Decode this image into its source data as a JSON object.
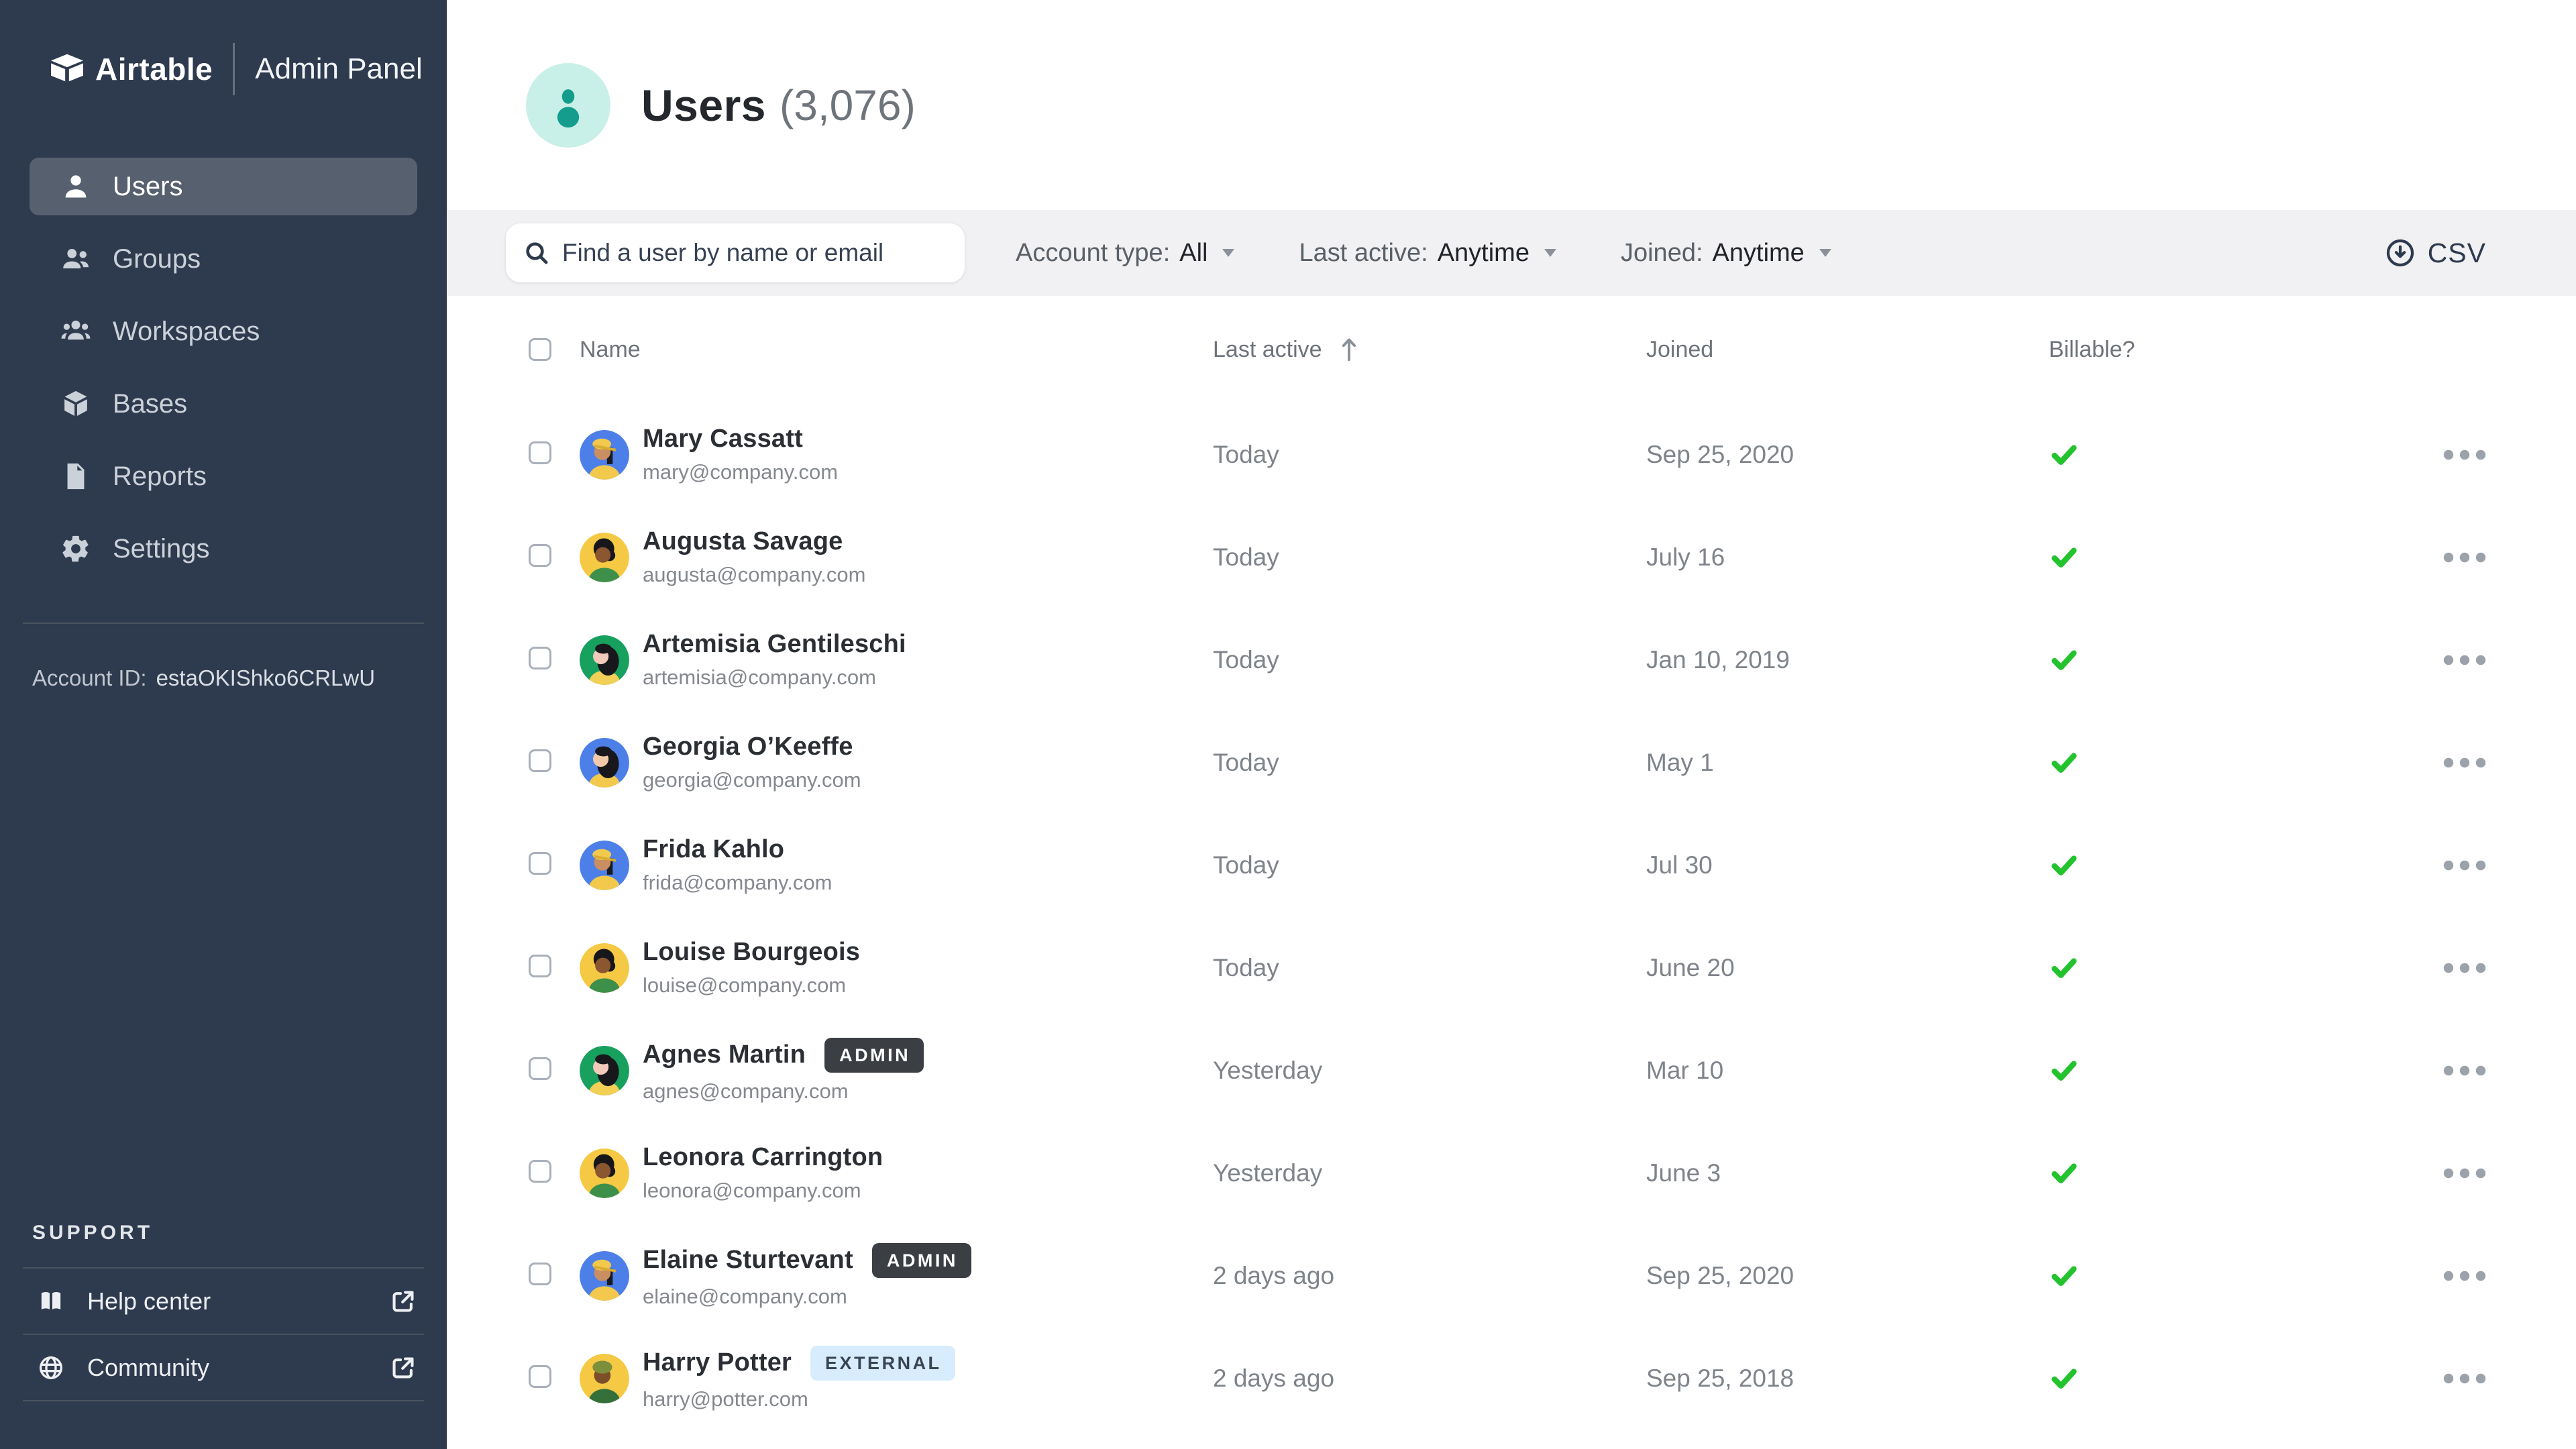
{
  "sidebar": {
    "logo_text": "Airtable",
    "app_title": "Admin Panel",
    "nav": [
      {
        "id": "users",
        "label": "Users",
        "icon": "user-icon",
        "active": true
      },
      {
        "id": "groups",
        "label": "Groups",
        "icon": "users-two-icon",
        "active": false
      },
      {
        "id": "workspaces",
        "label": "Workspaces",
        "icon": "users-three-icon",
        "active": false
      },
      {
        "id": "bases",
        "label": "Bases",
        "icon": "cube-icon",
        "active": false
      },
      {
        "id": "reports",
        "label": "Reports",
        "icon": "document-icon",
        "active": false
      },
      {
        "id": "settings",
        "label": "Settings",
        "icon": "gear-icon",
        "active": false
      }
    ],
    "account_id_label": "Account ID:",
    "account_id_value": "estaOKIShko6CRLwU",
    "support": {
      "heading": "SUPPORT",
      "items": [
        {
          "label": "Help center",
          "icon": "book-icon"
        },
        {
          "label": "Community",
          "icon": "globe-icon"
        }
      ]
    }
  },
  "header": {
    "title": "Users",
    "count": "(3,076)"
  },
  "filters": {
    "search_placeholder": "Find a user by name or email",
    "dropdowns": [
      {
        "label": "Account type:",
        "value": "All"
      },
      {
        "label": "Last active:",
        "value": "Anytime"
      },
      {
        "label": "Joined:",
        "value": "Anytime"
      }
    ],
    "export_label": "CSV"
  },
  "table": {
    "columns": {
      "name": "Name",
      "last_active": "Last active",
      "joined": "Joined",
      "billable": "Billable?"
    },
    "sort": {
      "column": "last_active",
      "direction": "asc"
    },
    "rows": [
      {
        "name": "Mary Cassatt",
        "email": "mary@company.com",
        "badge": null,
        "last_active": "Today",
        "joined": "Sep 25, 2020",
        "billable": true,
        "avatar": "blue-cap"
      },
      {
        "name": "Augusta Savage",
        "email": "augusta@company.com",
        "badge": null,
        "last_active": "Today",
        "joined": "July 16",
        "billable": true,
        "avatar": "yellow-afro"
      },
      {
        "name": "Artemisia Gentileschi",
        "email": "artemisia@company.com",
        "badge": null,
        "last_active": "Today",
        "joined": "Jan 10, 2019",
        "billable": true,
        "avatar": "green-hair"
      },
      {
        "name": "Georgia O’Keeffe",
        "email": "georgia@company.com",
        "badge": null,
        "last_active": "Today",
        "joined": "May 1",
        "billable": true,
        "avatar": "blue-hair"
      },
      {
        "name": "Frida Kahlo",
        "email": "frida@company.com",
        "badge": null,
        "last_active": "Today",
        "joined": "Jul 30",
        "billable": true,
        "avatar": "blue-cap"
      },
      {
        "name": "Louise Bourgeois",
        "email": "louise@company.com",
        "badge": null,
        "last_active": "Today",
        "joined": "June 20",
        "billable": true,
        "avatar": "yellow-afro"
      },
      {
        "name": "Agnes Martin",
        "email": "agnes@company.com",
        "badge": "ADMIN",
        "last_active": "Yesterday",
        "joined": "Mar 10",
        "billable": true,
        "avatar": "green-hair"
      },
      {
        "name": "Leonora Carrington",
        "email": "leonora@company.com",
        "badge": null,
        "last_active": "Yesterday",
        "joined": "June 3",
        "billable": true,
        "avatar": "yellow-afro"
      },
      {
        "name": "Elaine Sturtevant",
        "email": "elaine@company.com",
        "badge": "ADMIN",
        "last_active": "2 days ago",
        "joined": "Sep 25, 2020",
        "billable": true,
        "avatar": "blue-cap"
      },
      {
        "name": "Harry Potter",
        "email": "harry@potter.com",
        "badge": "EXTERNAL",
        "last_active": "2 days ago",
        "joined": "Sep 25, 2018",
        "billable": true,
        "avatar": "yellow-beanie"
      }
    ]
  },
  "colors": {
    "sidebar_bg": "#2E3A4E",
    "sidebar_active": "#57606E",
    "filterbar_bg": "#F1F1F3",
    "teal_light": "#C9F0E8",
    "accent_teal": "#149D8C",
    "billable_green": "#23C32E",
    "admin_badge_bg": "#3B3F44",
    "external_badge_bg": "#D7ECFC",
    "avatar_blue": "#4C7FE8",
    "avatar_yellow": "#F6C944",
    "avatar_green": "#17A05E"
  }
}
